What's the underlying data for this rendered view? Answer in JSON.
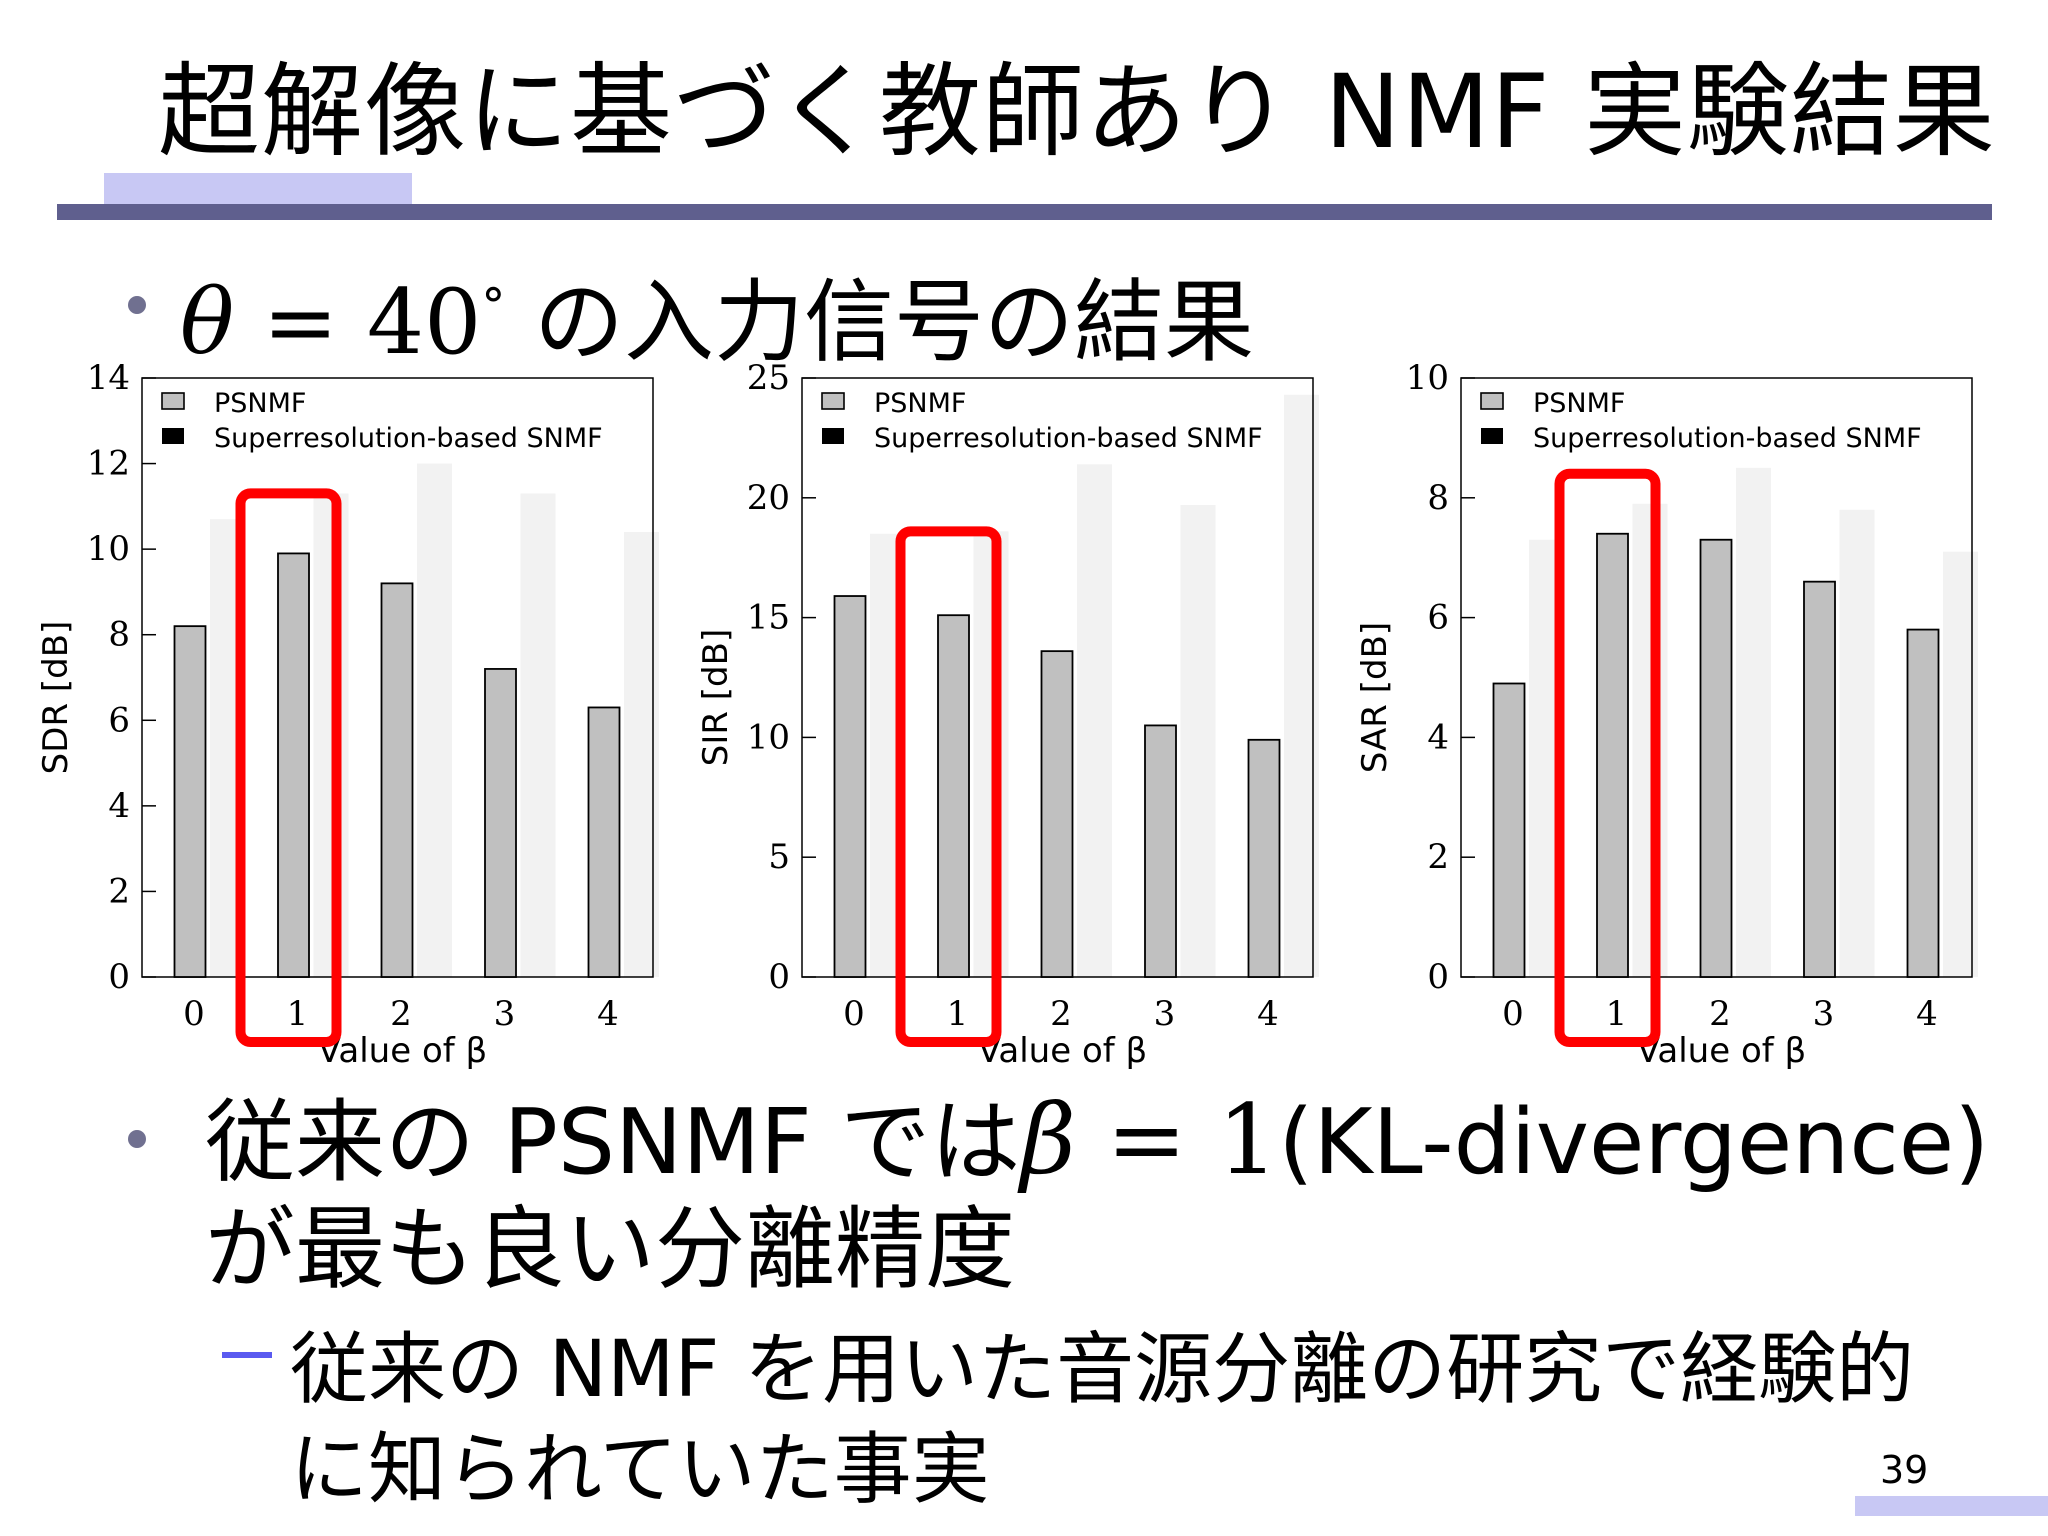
{
  "slide": {
    "title": "超解像に基づく教師あり NMF 実験結果",
    "bullet1": {
      "math": "θ = 40",
      "math_symbol": "θ",
      "math_eq": " = 40",
      "degree": "°",
      "text": " の入力信号の結果"
    },
    "bullet2": {
      "text_before": "従来の PSNMF では",
      "math_symbol": "β",
      "math_eq": " = 1",
      "text_after": "(KL-divergence)",
      "line2": "が最も良い分離精度"
    },
    "sub_bullet": {
      "line1": "従来の NMF を用いた音源分離の研究で経験的",
      "line2": "に知られていた事実"
    },
    "page_number": "39"
  },
  "colors": {
    "accent": "#c8c8f4",
    "rule": "#5f5f8e",
    "psnmf_bar": "#c0c0c0",
    "ghost_bar": "#f2f2f2",
    "highlight": "#ff0000",
    "dash": "#5a5af0"
  },
  "chart_data": [
    {
      "type": "bar",
      "categories": [
        "0",
        "1",
        "2",
        "3",
        "4"
      ],
      "xlabel": "Value of β",
      "ylabel": "SDR [dB]",
      "ylim": [
        0,
        14
      ],
      "yticks": [
        "0",
        "2",
        "4",
        "6",
        "8",
        "10",
        "12",
        "14"
      ],
      "legend": {
        "placement": "top-left",
        "entries": [
          "PSNMF",
          "Superresolution-based SNMF"
        ]
      },
      "series": [
        {
          "name": "PSNMF",
          "values": [
            8.2,
            9.9,
            9.2,
            7.2,
            6.3
          ]
        },
        {
          "name": "Superresolution-based SNMF",
          "values": [
            10.7,
            11.3,
            12.0,
            11.3,
            10.4
          ]
        }
      ],
      "highlight_category": "1"
    },
    {
      "type": "bar",
      "categories": [
        "0",
        "1",
        "2",
        "3",
        "4"
      ],
      "xlabel": "Value of β",
      "ylabel": "SIR [dB]",
      "ylim": [
        0,
        25
      ],
      "yticks": [
        "0",
        "5",
        "10",
        "15",
        "20",
        "25"
      ],
      "legend": {
        "placement": "top-left",
        "entries": [
          "PSNMF",
          "Superresolution-based SNMF"
        ]
      },
      "series": [
        {
          "name": "PSNMF",
          "values": [
            15.9,
            15.1,
            13.6,
            10.5,
            9.9
          ]
        },
        {
          "name": "Superresolution-based SNMF",
          "values": [
            18.5,
            18.6,
            21.4,
            19.7,
            24.3
          ]
        }
      ],
      "highlight_category": "1"
    },
    {
      "type": "bar",
      "categories": [
        "0",
        "1",
        "2",
        "3",
        "4"
      ],
      "xlabel": "Value of β",
      "ylabel": "SAR [dB]",
      "ylim": [
        0,
        10
      ],
      "yticks": [
        "0",
        "2",
        "4",
        "6",
        "8",
        "10"
      ],
      "legend": {
        "placement": "top-left",
        "entries": [
          "PSNMF",
          "Superresolution-based SNMF"
        ]
      },
      "series": [
        {
          "name": "PSNMF",
          "values": [
            4.9,
            7.4,
            7.3,
            6.6,
            5.8
          ]
        },
        {
          "name": "Superresolution-based SNMF",
          "values": [
            7.3,
            7.9,
            8.5,
            7.8,
            7.1
          ]
        }
      ],
      "highlight_category": "1"
    }
  ]
}
